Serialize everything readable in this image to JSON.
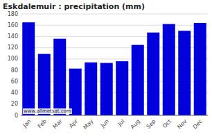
{
  "chart_data": {
    "type": "bar",
    "title": "Eskdalemuir : precipitation (mm)",
    "categories": [
      "Jan",
      "Feb",
      "Mar",
      "Apr",
      "May",
      "Jun",
      "Jul",
      "Aug",
      "Sep",
      "Oct",
      "Nov",
      "Dec"
    ],
    "values": [
      165,
      109,
      136,
      83,
      94,
      93,
      96,
      125,
      147,
      162,
      150,
      164
    ],
    "color": "#0000dd",
    "ylim": [
      0,
      180
    ],
    "yticks": [
      0,
      20,
      40,
      60,
      80,
      100,
      120,
      140,
      160,
      180
    ],
    "grid": true,
    "annotations": [
      "www.allmetsat.com"
    ]
  }
}
